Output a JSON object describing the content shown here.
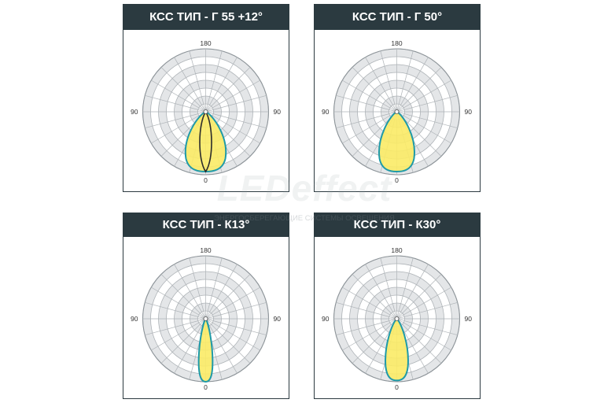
{
  "watermark": {
    "logo": "LEDeffect",
    "tagline": "ЭНЕРГОСБЕРЕГАЮЩИЕ СИСТЕМЫ ОСВЕЩЕНИЯ"
  },
  "colors": {
    "title_bg": "#2b3a40",
    "title_text": "#ffffff",
    "grid_fill": "#e4e6e8",
    "grid_line": "#aeb3b7",
    "curve_fill": "#fbeb66",
    "curve_stroke": "#1f9aa8",
    "curve_inner_stroke": "#2b2b2b"
  },
  "panels": [
    {
      "title": "КСС  ТИП - Г 55 +12°",
      "labels": {
        "top": "180",
        "bottom": "0",
        "left": "90",
        "right": "90"
      },
      "curves": [
        {
          "shape": "teardrop",
          "half_width_ratio": 0.32,
          "length_ratio": 0.95,
          "fill": true
        },
        {
          "shape": "lens",
          "half_width_ratio": 0.1,
          "length_ratio": 0.95,
          "fill": false,
          "inner": true
        }
      ]
    },
    {
      "title": "КСС  ТИП - Г 50°",
      "labels": {
        "top": "180",
        "bottom": "0",
        "left": "90",
        "right": "90"
      },
      "curves": [
        {
          "shape": "teardrop",
          "half_width_ratio": 0.28,
          "length_ratio": 0.95,
          "fill": true
        }
      ]
    },
    {
      "title": "КСС  ТИП - К13°",
      "labels": {
        "top": "180",
        "bottom": "0",
        "left": "90",
        "right": "90"
      },
      "curves": [
        {
          "shape": "teardrop",
          "half_width_ratio": 0.11,
          "length_ratio": 1.0,
          "fill": true
        }
      ]
    },
    {
      "title": "КСС  ТИП - К30°",
      "labels": {
        "top": "180",
        "bottom": "0",
        "left": "90",
        "right": "90"
      },
      "curves": [
        {
          "shape": "teardrop",
          "half_width_ratio": 0.18,
          "length_ratio": 0.98,
          "fill": true
        }
      ]
    }
  ]
}
